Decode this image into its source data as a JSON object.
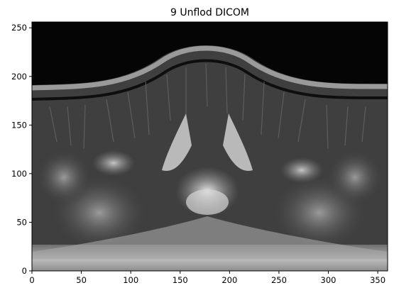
{
  "chart_data": {
    "type": "heatmap",
    "title": "9  Unflod DICOM",
    "xlabel": "",
    "ylabel": "",
    "xlim": [
      0,
      360
    ],
    "ylim": [
      0,
      256
    ],
    "x_ticks": [
      0,
      50,
      100,
      150,
      200,
      250,
      300,
      350
    ],
    "y_ticks": [
      0,
      50,
      100,
      150,
      200,
      250
    ],
    "colormap": "gray",
    "image_description": "unfolded grayscale MRI slice (DICOM) rendered as an image, 360 x 256",
    "grid": false
  },
  "colors": {
    "background": "#ffffff",
    "axes_frame": "#000000",
    "image_dark": "#050505",
    "image_mid": "#5a5a5a",
    "image_light": "#d8d8d8"
  }
}
